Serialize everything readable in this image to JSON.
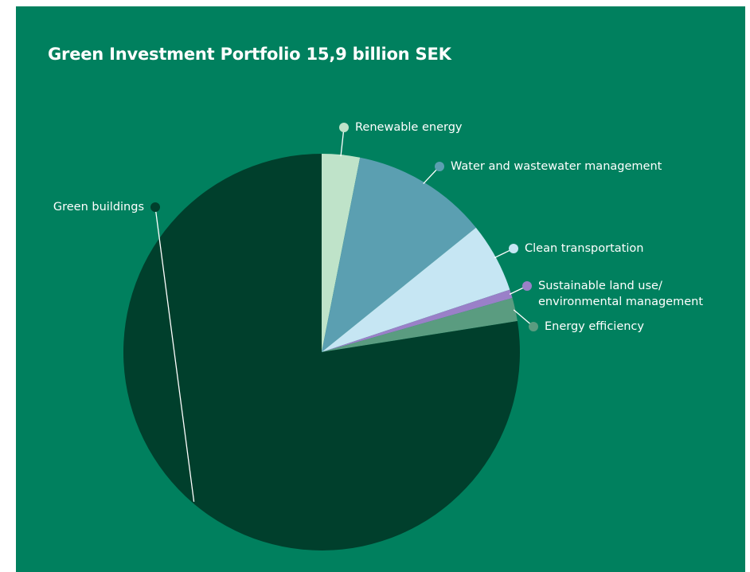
{
  "chart_data": {
    "type": "pie",
    "title": "Green Investment Portfolio 15,9 billion SEK",
    "categories": [
      "Renewable energy",
      "Water and wastewater management",
      "Clean transportation",
      "Sustainable land use/ environmental management",
      "Energy efficiency",
      "Green buildings"
    ],
    "values": [
      3.1,
      11.1,
      5.7,
      0.7,
      1.9,
      77.5
    ],
    "colors": [
      "#bfe3c9",
      "#5b9fb1",
      "#c6e6f3",
      "#9a80c8",
      "#5a9c80",
      "#003f2c"
    ]
  }
}
